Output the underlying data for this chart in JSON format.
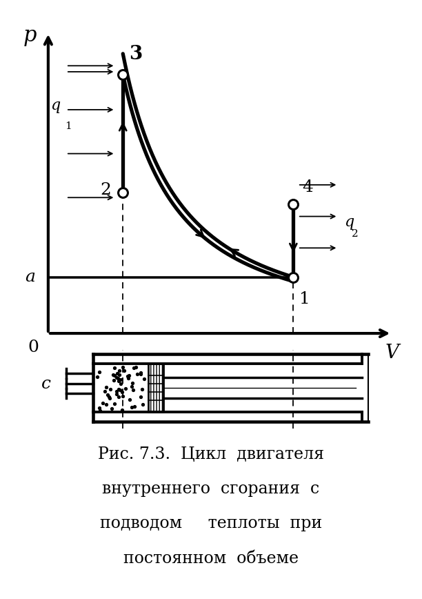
{
  "bg_color": "#ffffff",
  "title_line1": "Рис. 7.3.  Цикл  двигателя",
  "title_line2": "внутреннего  сгорания  с",
  "title_line3": "подводом     теплоты  при",
  "title_line4": "постоянном  объеме",
  "p_label": "p",
  "v_label": "V",
  "origin_label": "0",
  "a_label": "a",
  "q1_label": "q",
  "q1_sub": "1",
  "q2_label": "q",
  "q2_sub": "2",
  "c_label": "c",
  "V1": 0.82,
  "p1": 0.2,
  "V2": 0.25,
  "p2": 0.5,
  "V3": 0.25,
  "p3": 0.92,
  "V4": 0.82,
  "p4": 0.46,
  "adiabat_n": 1.35,
  "line_color": "#000000"
}
